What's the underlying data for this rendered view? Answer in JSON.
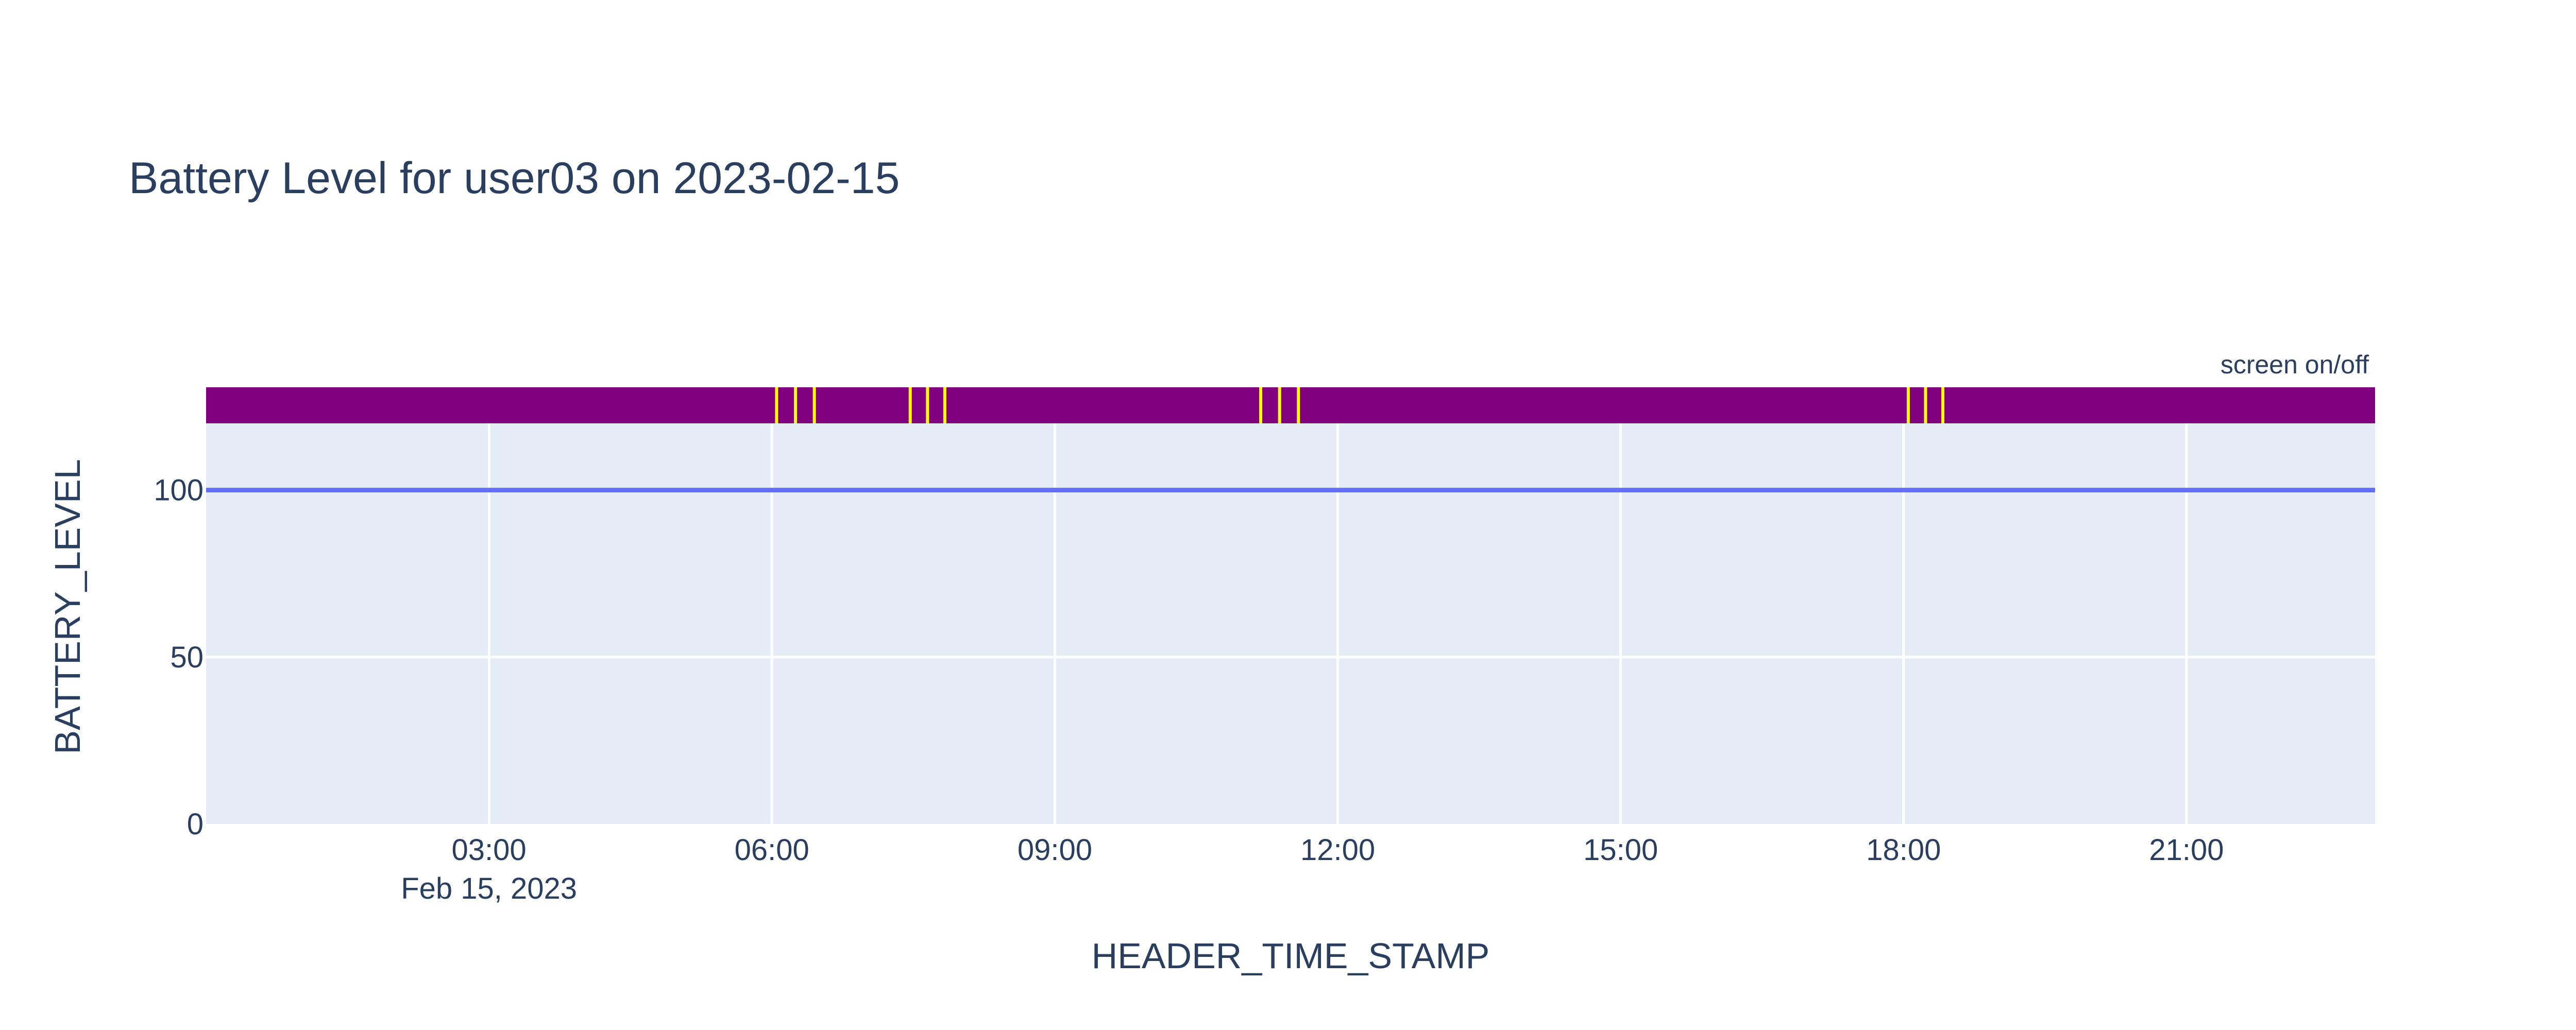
{
  "chart_data": {
    "type": "line",
    "title": "Battery Level for user03 on 2023-02-15",
    "xlabel": "HEADER_TIME_STAMP",
    "ylabel": "BATTERY_LEVEL",
    "x_range": [
      "2023-02-15T00:00",
      "2023-02-15T23:00"
    ],
    "ylim": [
      0,
      120
    ],
    "x_ticks": [
      {
        "label": "03:00",
        "sublabel": "Feb 15, 2023",
        "time": "03:00"
      },
      {
        "label": "06:00",
        "sublabel": "",
        "time": "06:00"
      },
      {
        "label": "09:00",
        "sublabel": "",
        "time": "09:00"
      },
      {
        "label": "12:00",
        "sublabel": "",
        "time": "12:00"
      },
      {
        "label": "15:00",
        "sublabel": "",
        "time": "15:00"
      },
      {
        "label": "18:00",
        "sublabel": "",
        "time": "18:00"
      },
      {
        "label": "21:00",
        "sublabel": "",
        "time": "21:00"
      }
    ],
    "y_ticks": [
      {
        "label": "0",
        "value": 0
      },
      {
        "label": "50",
        "value": 50
      },
      {
        "label": "100",
        "value": 100
      }
    ],
    "series": [
      {
        "x": [
          "00:00",
          "23:00"
        ],
        "y": [
          100,
          100
        ],
        "color": "#636efa"
      }
    ],
    "screen_strip": {
      "label": "screen on/off",
      "off_color": "#800080",
      "on_color": "#ffff00",
      "events": [
        "06:03",
        "06:15",
        "06:27",
        "07:28",
        "07:39",
        "07:50",
        "11:11",
        "11:23",
        "11:35",
        "18:03",
        "18:14",
        "18:25"
      ]
    },
    "grid": true,
    "plot_bgcolor": "#e5ecf6"
  }
}
